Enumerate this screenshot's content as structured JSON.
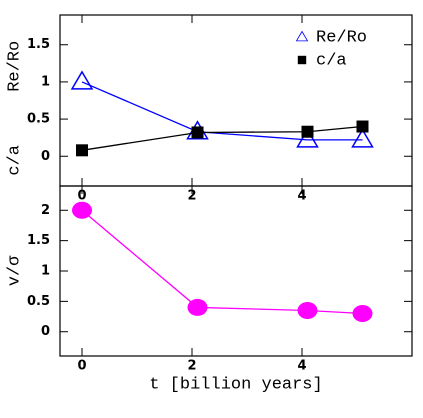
{
  "chart_data": [
    {
      "type": "line",
      "ylabels": [
        "Re/Ro",
        "c/a"
      ],
      "x": [
        0,
        2.1,
        4.1,
        5.1
      ],
      "series": [
        {
          "name": "Re/Ro",
          "color": "#0000ff",
          "marker": "open-triangle",
          "values": [
            1.0,
            0.33,
            0.22,
            0.22
          ]
        },
        {
          "name": "c/a",
          "color": "#000000",
          "marker": "filled-square",
          "values": [
            0.08,
            0.32,
            0.33,
            0.4
          ]
        }
      ],
      "xlim": [
        -0.4,
        6
      ],
      "xticks": [
        0,
        2,
        4
      ],
      "ylim": [
        -0.4,
        1.9
      ],
      "yticks": [
        0,
        0.5,
        1,
        1.5
      ],
      "legend": "upper right"
    },
    {
      "type": "line",
      "ylabel": "v/σ",
      "xlabel": "t [billion years]",
      "x": [
        0,
        2.1,
        4.1,
        5.1
      ],
      "series": [
        {
          "color": "#ff00ff",
          "marker": "filled-circle",
          "values": [
            2.0,
            0.4,
            0.35,
            0.3
          ]
        }
      ],
      "xlim": [
        -0.4,
        6
      ],
      "xticks": [
        0,
        2,
        4
      ],
      "ylim": [
        -0.4,
        2.4
      ],
      "yticks": [
        0,
        0.5,
        1,
        1.5,
        2
      ]
    }
  ]
}
